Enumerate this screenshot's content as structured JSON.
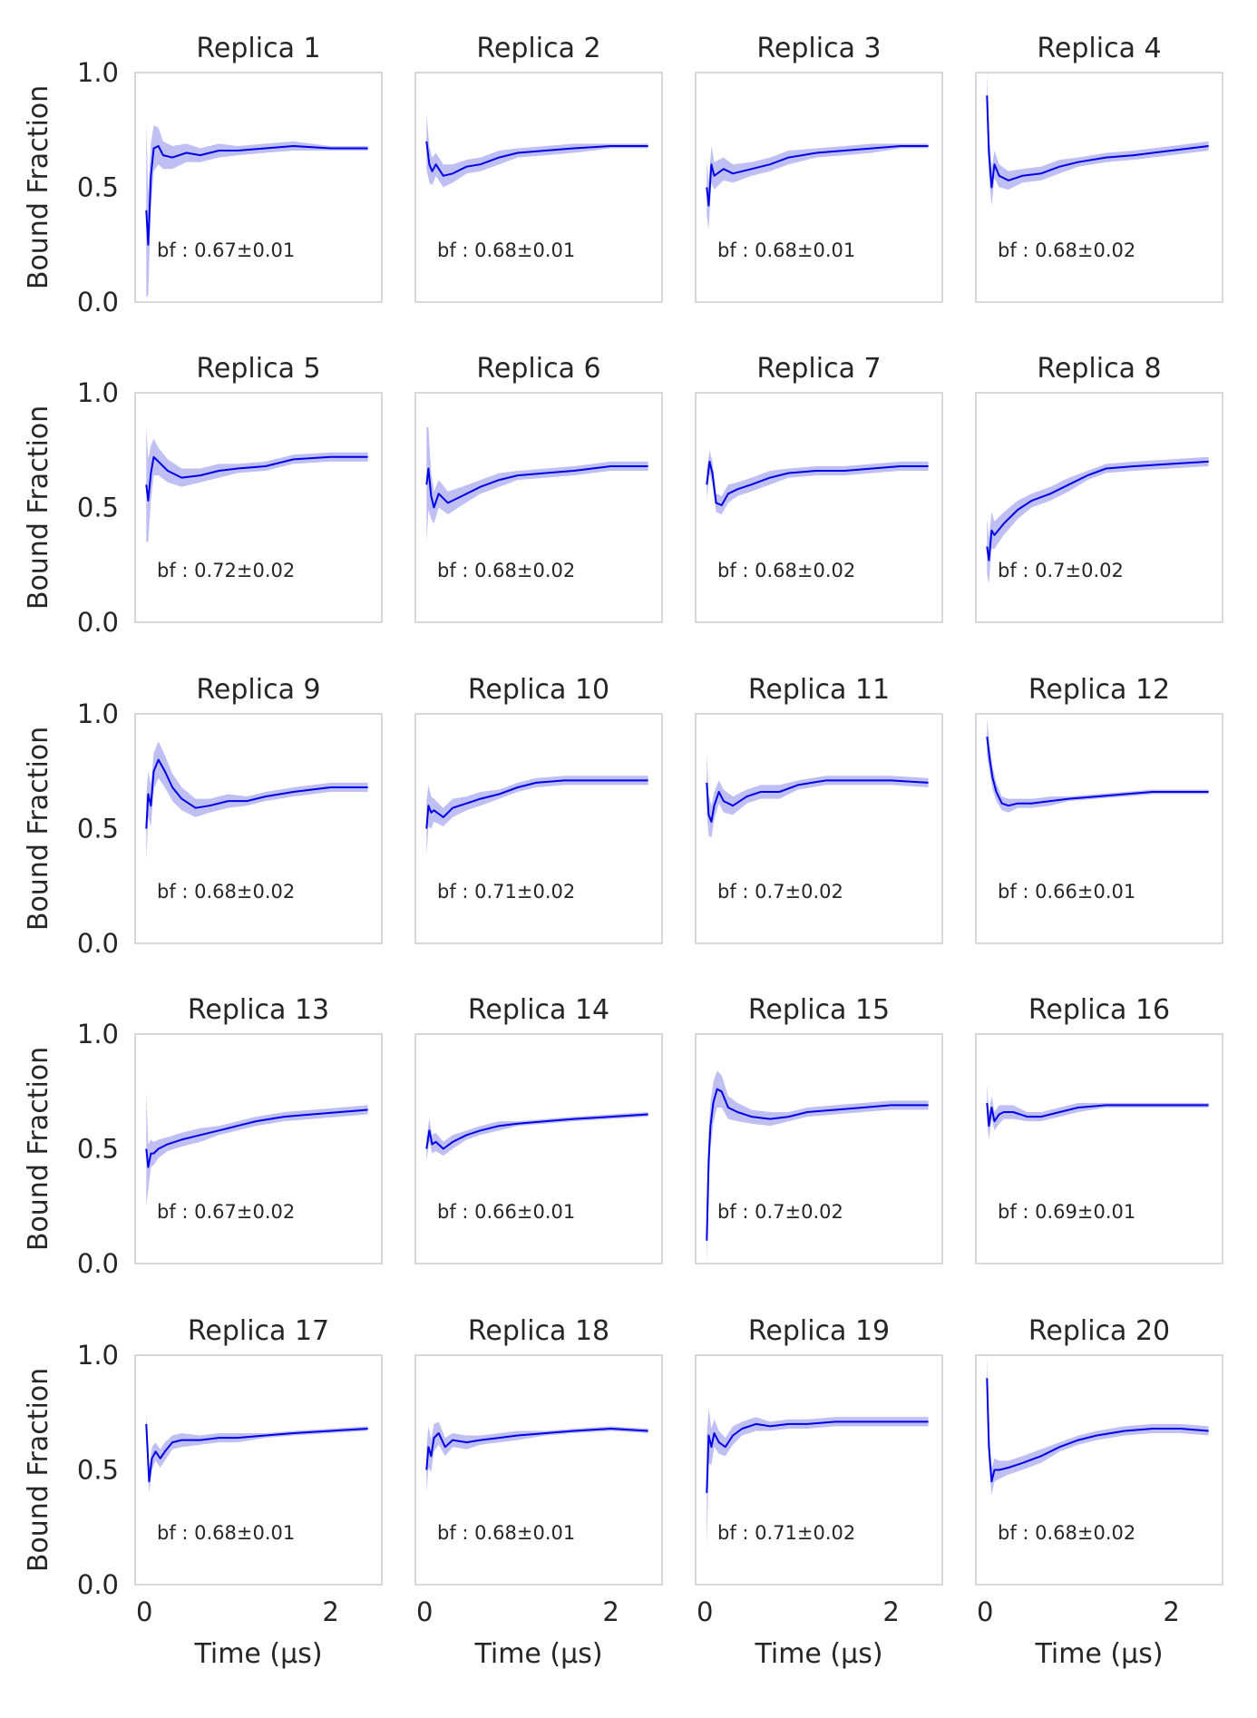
{
  "figure": {
    "y_axis_label": "Bound Fraction",
    "x_axis_label": "Time (μs)",
    "colors": {
      "line": "#0000e6",
      "band": "#aaaaf0",
      "frame": "#cccccc",
      "text": "#262626"
    }
  },
  "chart_data": {
    "type": "line",
    "layout": "small-multiples 5x4, shared axes",
    "xlim": [
      -0.1,
      2.55
    ],
    "ylim": [
      0.0,
      1.0
    ],
    "x_ticks": [
      0,
      2
    ],
    "y_ticks": [
      0.0,
      0.5,
      1.0
    ],
    "x_tick_labels": [
      "0",
      "2"
    ],
    "y_tick_labels": [
      "0.0",
      "0.5",
      "1.0"
    ],
    "grid": false,
    "legend": "none",
    "panels": [
      {
        "title": "Replica 1",
        "annotation": "bf : 0.67±0.01",
        "x": [
          0.02,
          0.04,
          0.07,
          0.1,
          0.15,
          0.2,
          0.3,
          0.45,
          0.6,
          0.8,
          1.0,
          1.3,
          1.6,
          2.0,
          2.4
        ],
        "y": [
          0.4,
          0.25,
          0.55,
          0.67,
          0.68,
          0.64,
          0.63,
          0.65,
          0.64,
          0.66,
          0.66,
          0.67,
          0.68,
          0.67,
          0.67
        ],
        "err": [
          0.38,
          0.22,
          0.14,
          0.1,
          0.08,
          0.06,
          0.05,
          0.04,
          0.03,
          0.03,
          0.02,
          0.02,
          0.02,
          0.01,
          0.01
        ]
      },
      {
        "title": "Replica 2",
        "annotation": "bf : 0.68±0.01",
        "x": [
          0.02,
          0.05,
          0.08,
          0.12,
          0.2,
          0.3,
          0.45,
          0.6,
          0.8,
          1.0,
          1.3,
          1.6,
          2.0,
          2.4
        ],
        "y": [
          0.7,
          0.6,
          0.57,
          0.6,
          0.55,
          0.56,
          0.59,
          0.6,
          0.63,
          0.65,
          0.66,
          0.67,
          0.68,
          0.68
        ],
        "err": [
          0.12,
          0.08,
          0.06,
          0.05,
          0.05,
          0.04,
          0.03,
          0.03,
          0.03,
          0.02,
          0.02,
          0.02,
          0.01,
          0.01
        ]
      },
      {
        "title": "Replica 3",
        "annotation": "bf : 0.68±0.01",
        "x": [
          0.02,
          0.04,
          0.07,
          0.1,
          0.2,
          0.3,
          0.5,
          0.7,
          0.9,
          1.2,
          1.5,
          1.8,
          2.1,
          2.4
        ],
        "y": [
          0.5,
          0.42,
          0.6,
          0.55,
          0.58,
          0.56,
          0.58,
          0.6,
          0.63,
          0.65,
          0.66,
          0.67,
          0.68,
          0.68
        ],
        "err": [
          0.12,
          0.1,
          0.08,
          0.06,
          0.05,
          0.04,
          0.03,
          0.03,
          0.03,
          0.02,
          0.02,
          0.02,
          0.01,
          0.01
        ]
      },
      {
        "title": "Replica 4",
        "annotation": "bf : 0.68±0.02",
        "x": [
          0.02,
          0.04,
          0.07,
          0.1,
          0.15,
          0.25,
          0.4,
          0.6,
          0.8,
          1.0,
          1.3,
          1.6,
          2.0,
          2.4
        ],
        "y": [
          0.9,
          0.65,
          0.5,
          0.6,
          0.55,
          0.53,
          0.55,
          0.56,
          0.59,
          0.61,
          0.63,
          0.64,
          0.66,
          0.68
        ],
        "err": [
          0.1,
          0.1,
          0.08,
          0.06,
          0.05,
          0.04,
          0.03,
          0.03,
          0.03,
          0.02,
          0.02,
          0.02,
          0.02,
          0.02
        ]
      },
      {
        "title": "Replica 5",
        "annotation": "bf : 0.72±0.02",
        "x": [
          0.02,
          0.04,
          0.07,
          0.1,
          0.15,
          0.25,
          0.4,
          0.6,
          0.8,
          1.0,
          1.3,
          1.6,
          2.0,
          2.4
        ],
        "y": [
          0.6,
          0.53,
          0.65,
          0.72,
          0.7,
          0.66,
          0.63,
          0.64,
          0.66,
          0.67,
          0.68,
          0.71,
          0.72,
          0.72
        ],
        "err": [
          0.25,
          0.18,
          0.12,
          0.08,
          0.06,
          0.05,
          0.04,
          0.03,
          0.03,
          0.02,
          0.02,
          0.02,
          0.02,
          0.02
        ]
      },
      {
        "title": "Replica 6",
        "annotation": "bf : 0.68±0.02",
        "x": [
          0.02,
          0.04,
          0.07,
          0.1,
          0.15,
          0.25,
          0.4,
          0.6,
          0.8,
          1.0,
          1.3,
          1.6,
          2.0,
          2.4
        ],
        "y": [
          0.6,
          0.67,
          0.55,
          0.5,
          0.56,
          0.52,
          0.55,
          0.59,
          0.62,
          0.64,
          0.65,
          0.66,
          0.68,
          0.68
        ],
        "err": [
          0.25,
          0.18,
          0.1,
          0.07,
          0.06,
          0.05,
          0.04,
          0.03,
          0.03,
          0.02,
          0.02,
          0.02,
          0.02,
          0.02
        ]
      },
      {
        "title": "Replica 7",
        "annotation": "bf : 0.68±0.02",
        "x": [
          0.02,
          0.05,
          0.08,
          0.12,
          0.18,
          0.25,
          0.35,
          0.5,
          0.7,
          0.9,
          1.2,
          1.5,
          1.8,
          2.1,
          2.4
        ],
        "y": [
          0.6,
          0.7,
          0.65,
          0.52,
          0.51,
          0.56,
          0.58,
          0.6,
          0.63,
          0.65,
          0.66,
          0.66,
          0.67,
          0.68,
          0.68
        ],
        "err": [
          0.06,
          0.05,
          0.05,
          0.04,
          0.04,
          0.04,
          0.03,
          0.03,
          0.03,
          0.02,
          0.02,
          0.02,
          0.02,
          0.02,
          0.02
        ]
      },
      {
        "title": "Replica 8",
        "annotation": "bf : 0.7±0.02",
        "x": [
          0.02,
          0.04,
          0.07,
          0.1,
          0.2,
          0.35,
          0.5,
          0.7,
          0.9,
          1.1,
          1.3,
          1.6,
          2.0,
          2.4
        ],
        "y": [
          0.33,
          0.27,
          0.4,
          0.38,
          0.43,
          0.49,
          0.53,
          0.56,
          0.6,
          0.64,
          0.67,
          0.68,
          0.69,
          0.7
        ],
        "err": [
          0.12,
          0.1,
          0.08,
          0.06,
          0.05,
          0.04,
          0.03,
          0.03,
          0.03,
          0.02,
          0.02,
          0.02,
          0.02,
          0.02
        ]
      },
      {
        "title": "Replica 9",
        "annotation": "bf : 0.68±0.02",
        "x": [
          0.02,
          0.04,
          0.07,
          0.1,
          0.15,
          0.22,
          0.3,
          0.4,
          0.55,
          0.7,
          0.9,
          1.1,
          1.3,
          1.6,
          2.0,
          2.4
        ],
        "y": [
          0.5,
          0.65,
          0.6,
          0.75,
          0.8,
          0.75,
          0.68,
          0.63,
          0.59,
          0.6,
          0.62,
          0.62,
          0.64,
          0.66,
          0.68,
          0.68
        ],
        "err": [
          0.14,
          0.1,
          0.09,
          0.08,
          0.08,
          0.07,
          0.06,
          0.05,
          0.04,
          0.03,
          0.03,
          0.02,
          0.02,
          0.02,
          0.02,
          0.02
        ]
      },
      {
        "title": "Replica 10",
        "annotation": "bf : 0.71±0.02",
        "x": [
          0.02,
          0.04,
          0.07,
          0.1,
          0.2,
          0.3,
          0.45,
          0.6,
          0.8,
          1.0,
          1.2,
          1.5,
          1.8,
          2.1,
          2.4
        ],
        "y": [
          0.5,
          0.6,
          0.57,
          0.58,
          0.55,
          0.59,
          0.61,
          0.63,
          0.65,
          0.68,
          0.7,
          0.71,
          0.71,
          0.71,
          0.71
        ],
        "err": [
          0.12,
          0.09,
          0.07,
          0.05,
          0.04,
          0.04,
          0.03,
          0.03,
          0.02,
          0.02,
          0.02,
          0.02,
          0.02,
          0.02,
          0.02
        ]
      },
      {
        "title": "Replica 11",
        "annotation": "bf : 0.7±0.02",
        "x": [
          0.02,
          0.04,
          0.07,
          0.1,
          0.15,
          0.2,
          0.3,
          0.45,
          0.6,
          0.8,
          1.0,
          1.3,
          1.6,
          2.0,
          2.4
        ],
        "y": [
          0.7,
          0.56,
          0.53,
          0.6,
          0.66,
          0.62,
          0.6,
          0.64,
          0.66,
          0.66,
          0.69,
          0.71,
          0.71,
          0.71,
          0.7
        ],
        "err": [
          0.13,
          0.09,
          0.07,
          0.06,
          0.05,
          0.05,
          0.04,
          0.03,
          0.03,
          0.03,
          0.02,
          0.02,
          0.02,
          0.02,
          0.02
        ]
      },
      {
        "title": "Replica 12",
        "annotation": "bf : 0.66±0.01",
        "x": [
          0.02,
          0.05,
          0.08,
          0.12,
          0.18,
          0.25,
          0.35,
          0.5,
          0.7,
          0.9,
          1.2,
          1.5,
          1.8,
          2.1,
          2.4
        ],
        "y": [
          0.9,
          0.8,
          0.72,
          0.66,
          0.61,
          0.6,
          0.61,
          0.61,
          0.62,
          0.63,
          0.64,
          0.65,
          0.66,
          0.66,
          0.66
        ],
        "err": [
          0.08,
          0.06,
          0.05,
          0.04,
          0.03,
          0.03,
          0.02,
          0.02,
          0.02,
          0.01,
          0.01,
          0.01,
          0.01,
          0.01,
          0.01
        ]
      },
      {
        "title": "Replica 13",
        "annotation": "bf : 0.67±0.02",
        "x": [
          0.02,
          0.04,
          0.07,
          0.1,
          0.15,
          0.25,
          0.4,
          0.6,
          0.8,
          1.0,
          1.2,
          1.5,
          1.8,
          2.1,
          2.4
        ],
        "y": [
          0.5,
          0.42,
          0.48,
          0.48,
          0.5,
          0.52,
          0.54,
          0.56,
          0.58,
          0.6,
          0.62,
          0.64,
          0.65,
          0.66,
          0.67
        ],
        "err": [
          0.25,
          0.1,
          0.06,
          0.05,
          0.04,
          0.03,
          0.03,
          0.03,
          0.02,
          0.02,
          0.02,
          0.02,
          0.02,
          0.02,
          0.02
        ]
      },
      {
        "title": "Replica 14",
        "annotation": "bf : 0.66±0.01",
        "x": [
          0.02,
          0.05,
          0.08,
          0.12,
          0.2,
          0.3,
          0.45,
          0.6,
          0.8,
          1.0,
          1.3,
          1.6,
          2.0,
          2.4
        ],
        "y": [
          0.5,
          0.58,
          0.52,
          0.53,
          0.5,
          0.53,
          0.56,
          0.58,
          0.6,
          0.61,
          0.62,
          0.63,
          0.64,
          0.65
        ],
        "err": [
          0.05,
          0.05,
          0.04,
          0.04,
          0.03,
          0.03,
          0.02,
          0.02,
          0.02,
          0.01,
          0.01,
          0.01,
          0.01,
          0.01
        ]
      },
      {
        "title": "Replica 15",
        "annotation": "bf : 0.7±0.02",
        "x": [
          0.02,
          0.04,
          0.06,
          0.09,
          0.13,
          0.18,
          0.25,
          0.35,
          0.5,
          0.7,
          0.9,
          1.1,
          1.4,
          1.7,
          2.0,
          2.4
        ],
        "y": [
          0.1,
          0.45,
          0.6,
          0.7,
          0.76,
          0.75,
          0.68,
          0.66,
          0.64,
          0.63,
          0.64,
          0.66,
          0.67,
          0.68,
          0.69,
          0.69
        ],
        "err": [
          0.15,
          0.12,
          0.1,
          0.09,
          0.08,
          0.07,
          0.05,
          0.04,
          0.03,
          0.03,
          0.02,
          0.02,
          0.02,
          0.02,
          0.02,
          0.02
        ]
      },
      {
        "title": "Replica 16",
        "annotation": "bf : 0.69±0.01",
        "x": [
          0.02,
          0.04,
          0.07,
          0.1,
          0.15,
          0.2,
          0.3,
          0.45,
          0.6,
          0.8,
          1.0,
          1.3,
          1.6,
          2.0,
          2.4
        ],
        "y": [
          0.7,
          0.6,
          0.68,
          0.62,
          0.65,
          0.66,
          0.66,
          0.64,
          0.64,
          0.66,
          0.68,
          0.69,
          0.69,
          0.69,
          0.69
        ],
        "err": [
          0.08,
          0.06,
          0.05,
          0.04,
          0.04,
          0.03,
          0.03,
          0.02,
          0.02,
          0.02,
          0.02,
          0.01,
          0.01,
          0.01,
          0.01
        ]
      },
      {
        "title": "Replica 17",
        "annotation": "bf : 0.68±0.01",
        "x": [
          0.02,
          0.05,
          0.08,
          0.12,
          0.17,
          0.22,
          0.3,
          0.4,
          0.6,
          0.8,
          1.0,
          1.3,
          1.6,
          2.0,
          2.4
        ],
        "y": [
          0.7,
          0.45,
          0.55,
          0.58,
          0.55,
          0.58,
          0.62,
          0.63,
          0.63,
          0.64,
          0.64,
          0.65,
          0.66,
          0.67,
          0.68
        ],
        "err": [
          0.05,
          0.05,
          0.05,
          0.04,
          0.04,
          0.04,
          0.03,
          0.03,
          0.02,
          0.02,
          0.02,
          0.01,
          0.01,
          0.01,
          0.01
        ]
      },
      {
        "title": "Replica 18",
        "annotation": "bf : 0.68±0.01",
        "x": [
          0.02,
          0.04,
          0.07,
          0.1,
          0.15,
          0.22,
          0.3,
          0.45,
          0.6,
          0.8,
          1.0,
          1.3,
          1.6,
          2.0,
          2.4
        ],
        "y": [
          0.5,
          0.6,
          0.56,
          0.64,
          0.66,
          0.6,
          0.63,
          0.62,
          0.63,
          0.64,
          0.65,
          0.66,
          0.67,
          0.68,
          0.67
        ],
        "err": [
          0.1,
          0.09,
          0.07,
          0.06,
          0.05,
          0.04,
          0.03,
          0.03,
          0.02,
          0.02,
          0.02,
          0.01,
          0.01,
          0.01,
          0.01
        ]
      },
      {
        "title": "Replica 19",
        "annotation": "bf : 0.71±0.02",
        "x": [
          0.02,
          0.04,
          0.07,
          0.1,
          0.15,
          0.22,
          0.3,
          0.4,
          0.55,
          0.7,
          0.9,
          1.1,
          1.4,
          1.7,
          2.0,
          2.4
        ],
        "y": [
          0.4,
          0.65,
          0.6,
          0.66,
          0.62,
          0.6,
          0.65,
          0.68,
          0.7,
          0.69,
          0.7,
          0.7,
          0.71,
          0.71,
          0.71,
          0.71
        ],
        "err": [
          0.25,
          0.12,
          0.08,
          0.06,
          0.05,
          0.04,
          0.04,
          0.03,
          0.03,
          0.02,
          0.02,
          0.02,
          0.02,
          0.02,
          0.02,
          0.02
        ]
      },
      {
        "title": "Replica 20",
        "annotation": "bf : 0.68±0.02",
        "x": [
          0.02,
          0.04,
          0.07,
          0.1,
          0.15,
          0.25,
          0.4,
          0.6,
          0.8,
          1.0,
          1.2,
          1.5,
          1.8,
          2.1,
          2.4
        ],
        "y": [
          0.9,
          0.6,
          0.45,
          0.5,
          0.5,
          0.51,
          0.53,
          0.56,
          0.6,
          0.63,
          0.65,
          0.67,
          0.68,
          0.68,
          0.67
        ],
        "err": [
          0.1,
          0.08,
          0.06,
          0.05,
          0.04,
          0.03,
          0.03,
          0.03,
          0.02,
          0.02,
          0.02,
          0.02,
          0.02,
          0.02,
          0.02
        ]
      }
    ]
  }
}
